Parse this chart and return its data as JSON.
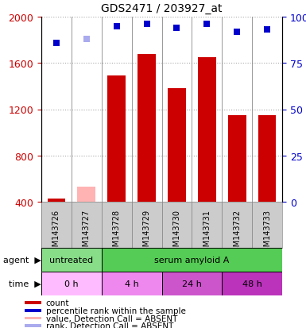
{
  "title": "GDS2471 / 203927_at",
  "samples": [
    "GSM143726",
    "GSM143727",
    "GSM143728",
    "GSM143729",
    "GSM143730",
    "GSM143731",
    "GSM143732",
    "GSM143733"
  ],
  "bar_values": [
    430,
    530,
    1490,
    1680,
    1380,
    1650,
    1150,
    1150
  ],
  "bar_absent": [
    false,
    true,
    false,
    false,
    false,
    false,
    false,
    false
  ],
  "bar_colors_normal": "#cc0000",
  "bar_colors_absent": "#ffb3b3",
  "percentile_values": [
    86,
    88,
    95,
    96,
    94,
    96,
    92,
    93
  ],
  "percentile_absent": [
    false,
    true,
    false,
    false,
    false,
    false,
    false,
    false
  ],
  "percentile_color_normal": "#0000cc",
  "percentile_color_absent": "#aaaaee",
  "ylim_left": [
    400,
    2000
  ],
  "ylim_right": [
    0,
    100
  ],
  "yticks_left": [
    400,
    800,
    1200,
    1600,
    2000
  ],
  "yticks_right": [
    0,
    25,
    50,
    75,
    100
  ],
  "agent_regions": [
    {
      "label": "untreated",
      "start": 0,
      "end": 2,
      "color": "#88dd88"
    },
    {
      "label": "serum amyloid A",
      "start": 2,
      "end": 8,
      "color": "#55cc55"
    }
  ],
  "time_regions": [
    {
      "label": "0 h",
      "start": 0,
      "end": 2,
      "color": "#ffbbff"
    },
    {
      "label": "4 h",
      "start": 2,
      "end": 4,
      "color": "#ee88ee"
    },
    {
      "label": "24 h",
      "start": 4,
      "end": 6,
      "color": "#cc55cc"
    },
    {
      "label": "48 h",
      "start": 6,
      "end": 8,
      "color": "#bb33bb"
    }
  ],
  "legend_items": [
    {
      "label": "count",
      "color": "#cc0000"
    },
    {
      "label": "percentile rank within the sample",
      "color": "#0000cc"
    },
    {
      "label": "value, Detection Call = ABSENT",
      "color": "#ffb3b3"
    },
    {
      "label": "rank, Detection Call = ABSENT",
      "color": "#aaaaee"
    }
  ],
  "bar_width": 0.6,
  "background_color": "#ffffff",
  "grid_color": "#aaaaaa",
  "axis_color_left": "#cc0000",
  "axis_color_right": "#0000cc",
  "sample_bg_color": "#cccccc",
  "plot_bg_color": "#ffffff"
}
